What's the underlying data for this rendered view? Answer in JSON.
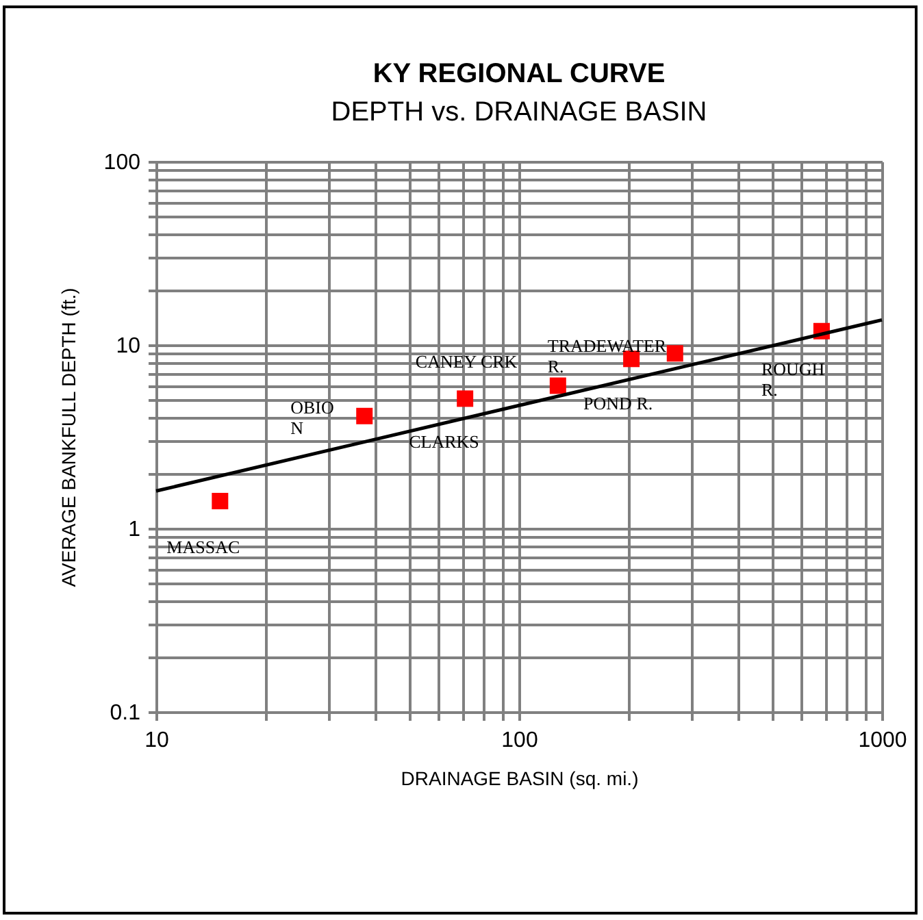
{
  "chart_data": {
    "type": "scatter",
    "title": "KY REGIONAL CURVE",
    "subtitle": "DEPTH vs. DRAINAGE BASIN",
    "xlabel": "DRAINAGE BASIN (sq. mi.)",
    "ylabel": "AVERAGE BANKFULL DEPTH (ft.)",
    "log": "xy",
    "grid": true,
    "series": [
      {
        "color": "#ff0000",
        "marker": "square",
        "x": [
          15,
          37.5,
          71,
          128,
          204,
          269,
          682
        ],
        "values": [
          1.41,
          4.1,
          5.1,
          6.0,
          8.4,
          9.0,
          11.9
        ]
      },
      {
        "type": "line",
        "color": "#000000",
        "marker": "none",
        "x": [
          10,
          1000
        ],
        "values": [
          1.6,
          13.7
        ]
      }
    ],
    "xlim": [
      10,
      1000
    ],
    "ylim": [
      0.1,
      100
    ],
    "xticks": [
      10,
      {
        "value": 20,
        "label": null
      },
      {
        "value": 30,
        "label": null
      },
      {
        "value": 40,
        "label": null
      },
      {
        "value": 50,
        "label": null
      },
      {
        "value": 60,
        "label": null
      },
      {
        "value": 70,
        "label": null
      },
      {
        "value": 80,
        "label": null
      },
      {
        "value": 90,
        "label": null
      },
      100,
      {
        "value": 200,
        "label": null
      },
      {
        "value": 300,
        "label": null
      },
      {
        "value": 400,
        "label": null
      },
      {
        "value": 500,
        "label": null
      },
      {
        "value": 600,
        "label": null
      },
      {
        "value": 700,
        "label": null
      },
      {
        "value": 800,
        "label": null
      },
      {
        "value": 900,
        "label": null
      },
      1000
    ],
    "yticks": [
      0.1,
      {
        "value": 0.2,
        "label": null
      },
      {
        "value": 0.3,
        "label": null
      },
      {
        "value": 0.4,
        "label": null
      },
      {
        "value": 0.5,
        "label": null
      },
      {
        "value": 0.6,
        "label": null
      },
      {
        "value": 0.7,
        "label": null
      },
      {
        "value": 0.8,
        "label": null
      },
      {
        "value": 0.9,
        "label": null
      },
      1,
      {
        "value": 2,
        "label": null
      },
      {
        "value": 3,
        "label": null
      },
      {
        "value": 4,
        "label": null
      },
      {
        "value": 5,
        "label": null
      },
      {
        "value": 6,
        "label": null
      },
      {
        "value": 7,
        "label": null
      },
      {
        "value": 8,
        "label": null
      },
      {
        "value": 9,
        "label": null
      },
      10,
      {
        "value": 20,
        "label": null
      },
      {
        "value": 30,
        "label": null
      },
      {
        "value": 40,
        "label": null
      },
      {
        "value": 50,
        "label": null
      },
      {
        "value": 60,
        "label": null
      },
      {
        "value": 70,
        "label": null
      },
      {
        "value": 80,
        "label": null
      },
      {
        "value": 90,
        "label": null
      },
      100
    ],
    "annotations": [
      {
        "text": "MASSAC",
        "x": 15,
        "y": 1.41
      },
      {
        "text": "OBIO\nN",
        "x": 37.5,
        "y": 4.1
      },
      {
        "text": "CLARKS",
        "x": 71,
        "y": 5.1
      },
      {
        "text": "CANEY CRK",
        "x": 128,
        "y": 6.0
      },
      {
        "text": "POND R.",
        "x": 204,
        "y": 8.4
      },
      {
        "text": "TRADEWATER\nR.",
        "x": 269,
        "y": 9.0
      },
      {
        "text": "ROUGH\nR.",
        "x": 682,
        "y": 11.9
      }
    ]
  }
}
